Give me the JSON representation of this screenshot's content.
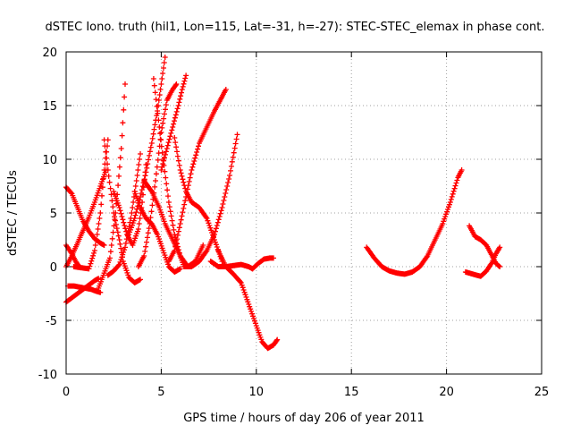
{
  "chart_data": {
    "type": "scatter",
    "title": "dSTEC Iono. truth (hil1, Lon=115, Lat=-31, h=-27): STEC-STEC_elemax in phase cont.",
    "xlabel": "GPS time / hours of day 206 of year 2011",
    "ylabel": "dSTEC  / TECUs",
    "xlim": [
      0,
      25
    ],
    "ylim": [
      -10,
      20
    ],
    "x_ticks": [
      0,
      5,
      10,
      15,
      20,
      25
    ],
    "y_ticks": [
      -10,
      -5,
      0,
      5,
      10,
      15,
      20
    ],
    "grid": true,
    "marker": "plus",
    "color": "#ff0000",
    "series": [
      {
        "x": [
          0.0,
          0.3,
          0.6,
          0.9,
          1.2,
          1.5,
          1.8,
          2.0
        ],
        "values": [
          7.4,
          6.8,
          5.5,
          4.2,
          3.3,
          2.6,
          2.2,
          2.0
        ]
      },
      {
        "x": [
          0.0,
          0.3,
          0.5,
          0.7
        ],
        "values": [
          2.0,
          1.2,
          0.5,
          0.0
        ]
      },
      {
        "x": [
          0.0,
          0.3,
          0.6,
          0.9,
          1.2,
          1.5,
          1.8,
          2.1
        ],
        "values": [
          0.0,
          1.0,
          2.2,
          3.4,
          4.6,
          6.0,
          7.5,
          9.0
        ]
      },
      {
        "x": [
          0.1,
          0.4,
          0.7,
          1.0,
          1.3,
          1.6,
          1.8
        ],
        "values": [
          -1.8,
          -1.8,
          -1.9,
          -2.0,
          -2.1,
          -2.3,
          -2.4
        ]
      },
      {
        "x": [
          0.0,
          0.3,
          0.6,
          0.9,
          1.2,
          1.5,
          1.7
        ],
        "values": [
          -3.3,
          -2.9,
          -2.5,
          -2.1,
          -1.7,
          -1.3,
          -1.1
        ]
      },
      {
        "x": [
          0.4,
          0.8,
          1.2,
          1.5,
          1.8,
          2.0,
          2.2
        ],
        "values": [
          0.0,
          -0.1,
          -0.2,
          1.5,
          5.0,
          9.0,
          11.8
        ]
      },
      {
        "x": [
          1.7,
          2.0,
          2.3,
          2.6,
          2.9,
          3.1
        ],
        "values": [
          -2.0,
          -0.6,
          0.8,
          5.0,
          11.0,
          17.0
        ]
      },
      {
        "x": [
          2.0,
          2.2,
          2.5,
          2.8,
          3.0,
          3.3,
          3.6,
          3.9
        ],
        "values": [
          11.8,
          9.0,
          5.0,
          2.5,
          0.5,
          -1.0,
          -1.5,
          -1.2
        ]
      },
      {
        "x": [
          2.2,
          2.5,
          2.8,
          3.1,
          3.4,
          3.7,
          3.9
        ],
        "values": [
          -0.8,
          -0.4,
          0.2,
          1.8,
          4.5,
          8.0,
          10.5
        ]
      },
      {
        "x": [
          2.5,
          2.8,
          3.2,
          3.5,
          3.8,
          4.0,
          4.2
        ],
        "values": [
          7.0,
          5.5,
          3.0,
          2.0,
          3.5,
          6.0,
          9.5
        ]
      },
      {
        "x": [
          3.3,
          3.6,
          3.9,
          4.2,
          4.5,
          4.8,
          5.0,
          5.2
        ],
        "values": [
          3.0,
          4.5,
          6.5,
          8.8,
          11.5,
          14.5,
          17.0,
          19.5
        ]
      },
      {
        "x": [
          3.6,
          3.9,
          4.2,
          4.5,
          4.8,
          5.1,
          5.4,
          5.7,
          6.0
        ],
        "values": [
          7.0,
          5.5,
          4.5,
          4.0,
          3.0,
          1.5,
          0.0,
          -0.5,
          -0.2
        ]
      },
      {
        "x": [
          3.8,
          4.1,
          4.4,
          4.7,
          5.0,
          5.3,
          5.6,
          5.8
        ],
        "values": [
          0.0,
          1.0,
          4.0,
          8.0,
          12.5,
          15.5,
          16.5,
          17.0
        ]
      },
      {
        "x": [
          4.6,
          4.9,
          5.1,
          5.4,
          5.7,
          6.0,
          6.2
        ],
        "values": [
          17.5,
          13.0,
          10.0,
          6.0,
          3.0,
          1.0,
          0.0
        ]
      },
      {
        "x": [
          4.1,
          4.5,
          4.9,
          5.2,
          5.6,
          6.0,
          6.4,
          6.8,
          7.2
        ],
        "values": [
          8.0,
          7.0,
          5.5,
          4.0,
          2.5,
          1.0,
          0.0,
          0.5,
          2.0
        ]
      },
      {
        "x": [
          5.0,
          5.3,
          5.6,
          5.9,
          6.1,
          6.3
        ],
        "values": [
          9.0,
          11.0,
          13.0,
          15.0,
          16.5,
          17.8
        ]
      },
      {
        "x": [
          5.4,
          5.7,
          6.0,
          6.3,
          6.6,
          7.0,
          7.4,
          7.8,
          8.1,
          8.4
        ],
        "values": [
          0.5,
          1.5,
          4.0,
          6.5,
          9.0,
          11.5,
          13.0,
          14.5,
          15.5,
          16.5
        ]
      },
      {
        "x": [
          5.7,
          6.0,
          6.3,
          6.6,
          7.0,
          7.4,
          7.8,
          8.2
        ],
        "values": [
          12.0,
          9.0,
          7.0,
          6.0,
          5.5,
          4.5,
          2.5,
          0.5
        ]
      },
      {
        "x": [
          6.2,
          6.6,
          7.0,
          7.4,
          7.8,
          8.2,
          8.6,
          9.0
        ],
        "values": [
          0.0,
          0.0,
          0.5,
          1.5,
          3.0,
          5.5,
          8.5,
          12.3
        ]
      },
      {
        "x": [
          7.6,
          8.0,
          8.4,
          8.8,
          9.2,
          9.6,
          9.8
        ],
        "values": [
          0.5,
          0.0,
          0.0,
          0.1,
          0.2,
          0.0,
          -0.2
        ]
      },
      {
        "x": [
          8.0,
          8.4,
          8.8,
          9.2,
          9.6,
          10.0,
          10.3,
          10.6,
          10.9,
          11.1
        ],
        "values": [
          1.5,
          0.0,
          -0.7,
          -1.5,
          -3.5,
          -5.5,
          -7.0,
          -7.6,
          -7.3,
          -6.8
        ]
      },
      {
        "x": [
          9.8,
          10.1,
          10.4,
          10.7,
          10.9
        ],
        "values": [
          -0.2,
          0.3,
          0.7,
          0.8,
          0.8
        ]
      },
      {
        "x": [
          15.8,
          16.2,
          16.6,
          17.0,
          17.4,
          17.8,
          18.2,
          18.6,
          19.0,
          19.4,
          19.8,
          20.2,
          20.6,
          20.8
        ],
        "values": [
          1.8,
          0.8,
          0.0,
          -0.4,
          -0.6,
          -0.7,
          -0.5,
          0.0,
          1.0,
          2.5,
          4.0,
          6.0,
          8.3,
          9.0
        ]
      },
      {
        "x": [
          21.2,
          21.5,
          21.8,
          22.1,
          22.4,
          22.6,
          22.8
        ],
        "values": [
          3.8,
          2.8,
          2.5,
          2.0,
          1.0,
          0.3,
          0.0
        ]
      },
      {
        "x": [
          21.0,
          21.4,
          21.8,
          22.1,
          22.4,
          22.6,
          22.8
        ],
        "values": [
          -0.5,
          -0.7,
          -0.9,
          -0.4,
          0.4,
          1.2,
          1.8
        ]
      }
    ]
  }
}
